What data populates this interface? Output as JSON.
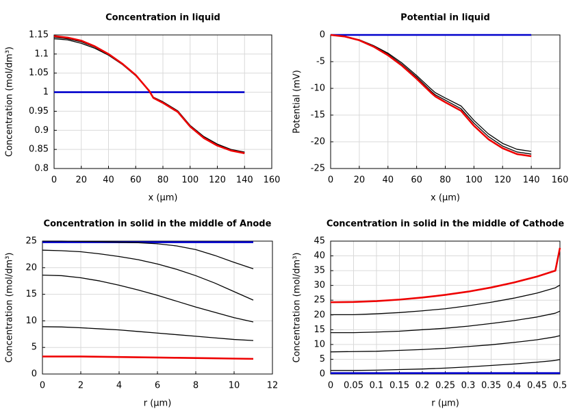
{
  "chart_data": [
    {
      "type": "line",
      "title": "Concentration in liquid",
      "xlabel": "x (µm)",
      "ylabel": "Concentration (mol/dm³)",
      "x": [
        0,
        10,
        20,
        30,
        40,
        50,
        60,
        70,
        73,
        80,
        91,
        100,
        110,
        120,
        130,
        140
      ],
      "xlim": [
        0,
        160
      ],
      "xticks": [
        0,
        20,
        40,
        60,
        80,
        100,
        120,
        140,
        160
      ],
      "ylim": [
        0.8,
        1.15
      ],
      "yticks": [
        0.8,
        0.85,
        0.9,
        0.95,
        1,
        1.05,
        1.1,
        1.15
      ],
      "grid": true,
      "series": [
        {
          "color": "#0000cc",
          "values": [
            1,
            1,
            1,
            1,
            1,
            1,
            1,
            1,
            1,
            1,
            1,
            1,
            1,
            1,
            1,
            1
          ]
        },
        {
          "color": "#000000",
          "values": [
            1.14,
            1.137,
            1.128,
            1.115,
            1.097,
            1.073,
            1.043,
            1.003,
            0.987,
            0.975,
            0.951,
            0.913,
            0.884,
            0.864,
            0.85,
            0.843
          ]
        },
        {
          "color": "#000000",
          "values": [
            1.144,
            1.14,
            1.132,
            1.118,
            1.099,
            1.074,
            1.044,
            1.003,
            0.986,
            0.973,
            0.949,
            0.911,
            0.882,
            0.862,
            0.848,
            0.841
          ]
        },
        {
          "color": "#ee0000",
          "values": [
            1.147,
            1.143,
            1.135,
            1.12,
            1.1,
            1.075,
            1.045,
            1.003,
            0.985,
            0.972,
            0.948,
            0.91,
            0.88,
            0.86,
            0.847,
            0.84
          ]
        }
      ]
    },
    {
      "type": "line",
      "title": "Potential in liquid",
      "xlabel": "x (µm)",
      "ylabel": "Potential (mV)",
      "x": [
        0,
        10,
        20,
        30,
        40,
        50,
        60,
        70,
        73,
        80,
        91,
        100,
        110,
        120,
        130,
        140
      ],
      "xlim": [
        0,
        160
      ],
      "xticks": [
        0,
        20,
        40,
        60,
        80,
        100,
        120,
        140,
        160
      ],
      "ylim": [
        -25,
        0
      ],
      "yticks": [
        -25,
        -20,
        -15,
        -10,
        -5,
        0
      ],
      "grid": true,
      "series": [
        {
          "color": "#0000cc",
          "values": [
            0,
            0,
            0,
            0,
            0,
            0,
            0,
            0,
            0,
            0,
            0,
            0,
            0,
            0,
            0,
            0
          ]
        },
        {
          "color": "#000000",
          "values": [
            0,
            -0.3,
            -0.9,
            -2.0,
            -3.4,
            -5.3,
            -7.6,
            -10.1,
            -10.8,
            -11.8,
            -13.3,
            -16,
            -18.5,
            -20.3,
            -21.4,
            -21.8
          ]
        },
        {
          "color": "#000000",
          "values": [
            0,
            -0.3,
            -0.95,
            -2.1,
            -3.6,
            -5.6,
            -7.9,
            -10.5,
            -11.2,
            -12.2,
            -13.8,
            -16.5,
            -19,
            -20.8,
            -21.9,
            -22.3
          ]
        },
        {
          "color": "#ee0000",
          "values": [
            0,
            -0.3,
            -1.0,
            -2.2,
            -3.8,
            -5.8,
            -8.2,
            -10.8,
            -11.5,
            -12.6,
            -14.2,
            -17,
            -19.5,
            -21.2,
            -22.3,
            -22.7
          ]
        }
      ]
    },
    {
      "type": "line",
      "title": "Concentration in solid in the middle of Anode",
      "xlabel": "r (µm)",
      "ylabel": "Concentration (mol/dm³)",
      "x": [
        0,
        1,
        2,
        3,
        4,
        5,
        6,
        7,
        8,
        9,
        10,
        11
      ],
      "xlim": [
        0,
        12
      ],
      "xticks": [
        0,
        2,
        4,
        6,
        8,
        10,
        12
      ],
      "ylim": [
        0,
        25
      ],
      "yticks": [
        0,
        5,
        10,
        15,
        20,
        25
      ],
      "grid": true,
      "series": [
        {
          "color": "#0000cc",
          "values": [
            24.8,
            24.8,
            24.8,
            24.8,
            24.8,
            24.8,
            24.8,
            24.8,
            24.8,
            24.8,
            24.8,
            24.8
          ]
        },
        {
          "color": "#000000",
          "values": [
            25,
            25,
            24.95,
            24.9,
            24.8,
            24.7,
            24.5,
            24.1,
            23.4,
            22.3,
            21,
            19.8
          ]
        },
        {
          "color": "#000000",
          "values": [
            23.3,
            23.2,
            23.0,
            22.6,
            22.1,
            21.5,
            20.7,
            19.7,
            18.5,
            17.1,
            15.5,
            13.9
          ]
        },
        {
          "color": "#000000",
          "values": [
            18.6,
            18.5,
            18.1,
            17.5,
            16.7,
            15.8,
            14.8,
            13.7,
            12.6,
            11.6,
            10.6,
            9.8
          ]
        },
        {
          "color": "#000000",
          "values": [
            8.9,
            8.85,
            8.7,
            8.5,
            8.3,
            8.0,
            7.7,
            7.4,
            7.1,
            6.8,
            6.5,
            6.3
          ]
        },
        {
          "color": "#ee0000",
          "values": [
            3.3,
            3.3,
            3.3,
            3.25,
            3.2,
            3.15,
            3.1,
            3.05,
            3.0,
            2.95,
            2.9,
            2.85
          ]
        }
      ]
    },
    {
      "type": "line",
      "title": "Concentration in solid in the middle of Cathode",
      "xlabel": "r (µm)",
      "ylabel": "Concentration (mol/dm³)",
      "x": [
        0,
        0.05,
        0.1,
        0.15,
        0.2,
        0.25,
        0.3,
        0.35,
        0.4,
        0.45,
        0.49,
        0.5
      ],
      "xlim": [
        0,
        0.5
      ],
      "xticks": [
        0,
        0.05,
        0.1,
        0.15,
        0.2,
        0.25,
        0.3,
        0.35,
        0.4,
        0.45,
        0.5
      ],
      "ylim": [
        0,
        45
      ],
      "yticks": [
        0,
        5,
        10,
        15,
        20,
        25,
        30,
        35,
        40,
        45
      ],
      "grid": true,
      "series": [
        {
          "color": "#0000cc",
          "values": [
            0.3,
            0.3,
            0.3,
            0.3,
            0.3,
            0.3,
            0.3,
            0.3,
            0.3,
            0.3,
            0.3,
            0.3
          ]
        },
        {
          "color": "#000000",
          "values": [
            1.2,
            1.2,
            1.3,
            1.5,
            1.7,
            2.0,
            2.4,
            2.9,
            3.4,
            4.0,
            4.6,
            4.9
          ]
        },
        {
          "color": "#000000",
          "values": [
            7.5,
            7.6,
            7.7,
            8.0,
            8.3,
            8.7,
            9.3,
            9.9,
            10.7,
            11.6,
            12.6,
            13.0
          ]
        },
        {
          "color": "#000000",
          "values": [
            14.0,
            14.0,
            14.2,
            14.5,
            15.0,
            15.5,
            16.2,
            17.1,
            18.1,
            19.3,
            20.6,
            21.3
          ]
        },
        {
          "color": "#000000",
          "values": [
            20.1,
            20.1,
            20.4,
            20.8,
            21.4,
            22.1,
            23.1,
            24.3,
            25.7,
            27.4,
            29.2,
            30.1
          ]
        },
        {
          "color": "#ee0000",
          "values": [
            24.3,
            24.4,
            24.7,
            25.2,
            25.9,
            26.8,
            27.9,
            29.3,
            31,
            33,
            35,
            42.7
          ]
        }
      ]
    }
  ]
}
